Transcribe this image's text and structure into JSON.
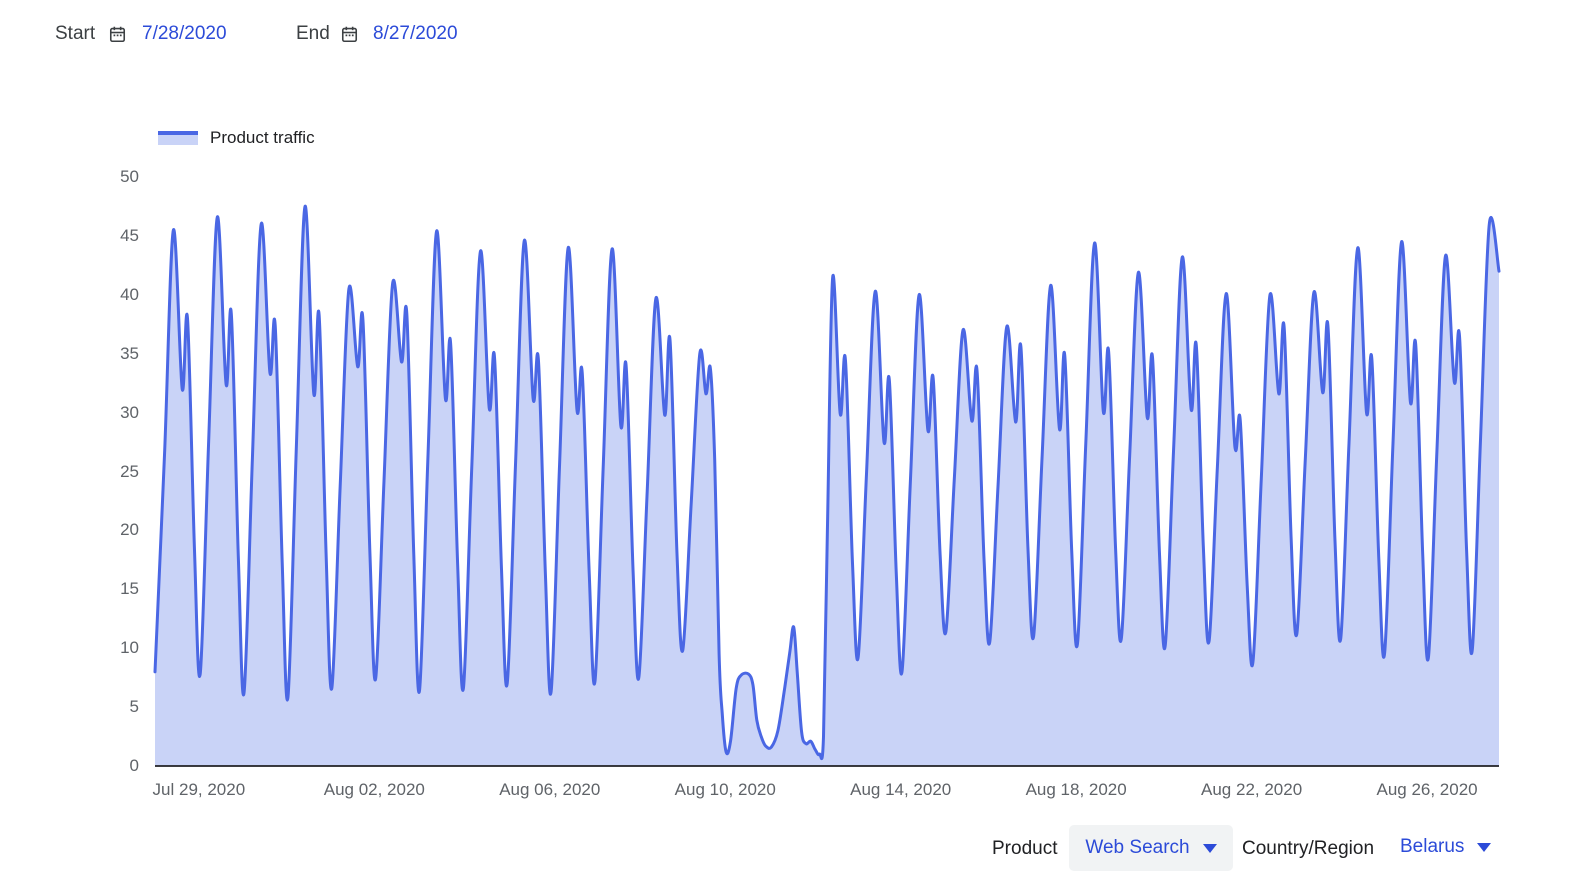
{
  "header": {
    "start_label": "Start",
    "start_date": "7/28/2020",
    "end_label": "End",
    "end_date": "8/27/2020"
  },
  "legend": {
    "series_label": "Product traffic"
  },
  "footer_controls": {
    "product_label": "Product",
    "product_value": "Web Search",
    "country_label": "Country/Region",
    "country_value": "Belarus"
  },
  "colors": {
    "line_blue": "#4a67e4",
    "fill_blue": "#c9d3f7",
    "link_blue": "#2c4bd8",
    "text_dark": "#202124",
    "label_gray": "#3c4043",
    "tick_gray": "#5f6368",
    "pill_bg": "#f1f3f4",
    "axis_line": "#202124"
  },
  "chart_data": {
    "type": "area",
    "series_name": "Product traffic",
    "x_unit": "days since Jul 28, 2020 (t); daily cycle: night trough, midday peak, afternoon dip, evening secondary peak",
    "t_max": 30.64,
    "ylim": [
      0,
      50
    ],
    "y_ticks": [
      0,
      5,
      10,
      15,
      20,
      25,
      30,
      35,
      40,
      45,
      50
    ],
    "x_ticks": [
      {
        "t": 1,
        "label": "Jul 29, 2020"
      },
      {
        "t": 5,
        "label": "Aug 02, 2020"
      },
      {
        "t": 9,
        "label": "Aug 06, 2020"
      },
      {
        "t": 13,
        "label": "Aug 10, 2020"
      },
      {
        "t": 17,
        "label": "Aug 14, 2020"
      },
      {
        "t": 21,
        "label": "Aug 18, 2020"
      },
      {
        "t": 25,
        "label": "Aug 22, 2020"
      },
      {
        "t": 29,
        "label": "Aug 26, 2020"
      }
    ],
    "grid": false,
    "legend_position": "top-left",
    "points": [
      [
        0.0,
        8.0
      ],
      [
        0.22,
        26.8
      ],
      [
        0.42,
        45.5
      ],
      [
        0.62,
        32.0
      ],
      [
        0.74,
        38.0
      ],
      [
        0.9,
        18.3
      ],
      [
        1.03,
        7.8
      ],
      [
        1.22,
        27.2
      ],
      [
        1.42,
        46.6
      ],
      [
        1.62,
        32.4
      ],
      [
        1.74,
        38.4
      ],
      [
        1.9,
        17.8
      ],
      [
        2.03,
        6.2
      ],
      [
        2.22,
        26.1
      ],
      [
        2.42,
        46.0
      ],
      [
        2.62,
        33.4
      ],
      [
        2.74,
        37.4
      ],
      [
        2.9,
        17.3
      ],
      [
        3.03,
        5.8
      ],
      [
        3.22,
        26.7
      ],
      [
        3.42,
        47.5
      ],
      [
        3.62,
        31.6
      ],
      [
        3.74,
        38.3
      ],
      [
        3.9,
        18.0
      ],
      [
        4.03,
        6.6
      ],
      [
        4.22,
        23.6
      ],
      [
        4.42,
        40.5
      ],
      [
        4.62,
        33.9
      ],
      [
        4.74,
        37.9
      ],
      [
        4.9,
        18.1
      ],
      [
        5.03,
        7.4
      ],
      [
        5.22,
        24.2
      ],
      [
        5.42,
        41.0
      ],
      [
        5.62,
        34.3
      ],
      [
        5.74,
        38.4
      ],
      [
        5.9,
        17.9
      ],
      [
        6.03,
        6.4
      ],
      [
        6.22,
        25.9
      ],
      [
        6.42,
        45.4
      ],
      [
        6.62,
        31.2
      ],
      [
        6.74,
        35.9
      ],
      [
        6.9,
        17.0
      ],
      [
        7.03,
        6.6
      ],
      [
        7.22,
        25.2
      ],
      [
        7.42,
        43.7
      ],
      [
        7.62,
        30.4
      ],
      [
        7.74,
        34.7
      ],
      [
        7.9,
        16.7
      ],
      [
        8.03,
        7.0
      ],
      [
        8.22,
        25.8
      ],
      [
        8.42,
        44.6
      ],
      [
        8.62,
        31.2
      ],
      [
        8.74,
        34.5
      ],
      [
        8.9,
        16.3
      ],
      [
        9.03,
        6.3
      ],
      [
        9.22,
        25.2
      ],
      [
        9.42,
        44.0
      ],
      [
        9.62,
        30.2
      ],
      [
        9.74,
        33.4
      ],
      [
        9.9,
        16.2
      ],
      [
        10.03,
        7.2
      ],
      [
        10.22,
        25.6
      ],
      [
        10.42,
        43.9
      ],
      [
        10.62,
        28.9
      ],
      [
        10.74,
        34.0
      ],
      [
        10.9,
        16.5
      ],
      [
        11.03,
        7.5
      ],
      [
        11.22,
        23.3
      ],
      [
        11.42,
        39.7
      ],
      [
        11.62,
        29.8
      ],
      [
        11.74,
        36.2
      ],
      [
        11.9,
        18.0
      ],
      [
        12.03,
        9.8
      ],
      [
        12.22,
        22.0
      ],
      [
        12.42,
        35.0
      ],
      [
        12.56,
        31.6
      ],
      [
        12.66,
        33.8
      ],
      [
        12.76,
        26.0
      ],
      [
        12.86,
        9.5
      ],
      [
        12.93,
        4.5
      ],
      [
        13.02,
        1.2
      ],
      [
        13.12,
        2.1
      ],
      [
        13.25,
        6.6
      ],
      [
        13.36,
        7.7
      ],
      [
        13.53,
        7.8
      ],
      [
        13.63,
        6.9
      ],
      [
        13.72,
        3.9
      ],
      [
        13.82,
        2.5
      ],
      [
        13.92,
        1.7
      ],
      [
        14.05,
        1.6
      ],
      [
        14.2,
        3.0
      ],
      [
        14.35,
        6.5
      ],
      [
        14.47,
        9.6
      ],
      [
        14.56,
        11.8
      ],
      [
        14.64,
        8.0
      ],
      [
        14.74,
        2.9
      ],
      [
        14.84,
        1.9
      ],
      [
        14.95,
        2.1
      ],
      [
        15.05,
        1.4
      ],
      [
        15.15,
        1.0
      ],
      [
        15.24,
        2.5
      ],
      [
        15.33,
        20.0
      ],
      [
        15.45,
        41.5
      ],
      [
        15.62,
        29.9
      ],
      [
        15.74,
        34.5
      ],
      [
        15.9,
        17.4
      ],
      [
        16.03,
        9.2
      ],
      [
        16.22,
        24.8
      ],
      [
        16.42,
        40.3
      ],
      [
        16.62,
        27.5
      ],
      [
        16.74,
        32.8
      ],
      [
        16.9,
        16.3
      ],
      [
        17.03,
        8.0
      ],
      [
        17.22,
        24.0
      ],
      [
        17.42,
        40.0
      ],
      [
        17.62,
        28.5
      ],
      [
        17.74,
        32.9
      ],
      [
        17.9,
        17.8
      ],
      [
        18.03,
        11.4
      ],
      [
        18.22,
        24.2
      ],
      [
        18.42,
        37.0
      ],
      [
        18.62,
        29.3
      ],
      [
        18.74,
        33.6
      ],
      [
        18.9,
        17.6
      ],
      [
        19.03,
        10.5
      ],
      [
        19.22,
        23.9
      ],
      [
        19.42,
        37.3
      ],
      [
        19.62,
        29.2
      ],
      [
        19.74,
        35.6
      ],
      [
        19.9,
        18.6
      ],
      [
        20.03,
        11.0
      ],
      [
        20.22,
        25.9
      ],
      [
        20.42,
        40.8
      ],
      [
        20.62,
        28.6
      ],
      [
        20.74,
        34.9
      ],
      [
        20.9,
        18.1
      ],
      [
        21.03,
        10.4
      ],
      [
        21.22,
        27.4
      ],
      [
        21.42,
        44.4
      ],
      [
        21.62,
        30.1
      ],
      [
        21.74,
        35.2
      ],
      [
        21.9,
        18.4
      ],
      [
        22.03,
        10.8
      ],
      [
        22.22,
        26.4
      ],
      [
        22.42,
        41.9
      ],
      [
        22.62,
        29.6
      ],
      [
        22.74,
        34.7
      ],
      [
        22.9,
        18.0
      ],
      [
        23.03,
        10.2
      ],
      [
        23.22,
        26.7
      ],
      [
        23.42,
        43.2
      ],
      [
        23.62,
        30.3
      ],
      [
        23.74,
        35.7
      ],
      [
        23.9,
        18.5
      ],
      [
        24.03,
        10.6
      ],
      [
        24.22,
        25.4
      ],
      [
        24.42,
        40.1
      ],
      [
        24.62,
        27.1
      ],
      [
        24.74,
        29.4
      ],
      [
        24.9,
        15.3
      ],
      [
        25.03,
        8.8
      ],
      [
        25.22,
        24.4
      ],
      [
        25.42,
        40.0
      ],
      [
        25.62,
        31.6
      ],
      [
        25.74,
        37.3
      ],
      [
        25.9,
        19.4
      ],
      [
        26.03,
        11.2
      ],
      [
        26.22,
        25.7
      ],
      [
        26.42,
        40.2
      ],
      [
        26.62,
        31.7
      ],
      [
        26.74,
        37.4
      ],
      [
        26.9,
        19.3
      ],
      [
        27.03,
        10.8
      ],
      [
        27.22,
        27.4
      ],
      [
        27.42,
        44.0
      ],
      [
        27.62,
        30.0
      ],
      [
        27.74,
        34.6
      ],
      [
        27.9,
        17.6
      ],
      [
        28.03,
        9.5
      ],
      [
        28.22,
        27.0
      ],
      [
        28.42,
        44.5
      ],
      [
        28.62,
        30.9
      ],
      [
        28.74,
        35.8
      ],
      [
        28.9,
        18.0
      ],
      [
        29.03,
        9.2
      ],
      [
        29.22,
        26.3
      ],
      [
        29.42,
        43.3
      ],
      [
        29.62,
        32.6
      ],
      [
        29.74,
        36.5
      ],
      [
        29.9,
        18.5
      ],
      [
        30.03,
        9.8
      ],
      [
        30.22,
        27.9
      ],
      [
        30.42,
        46.0
      ],
      [
        30.64,
        42.0
      ]
    ]
  }
}
